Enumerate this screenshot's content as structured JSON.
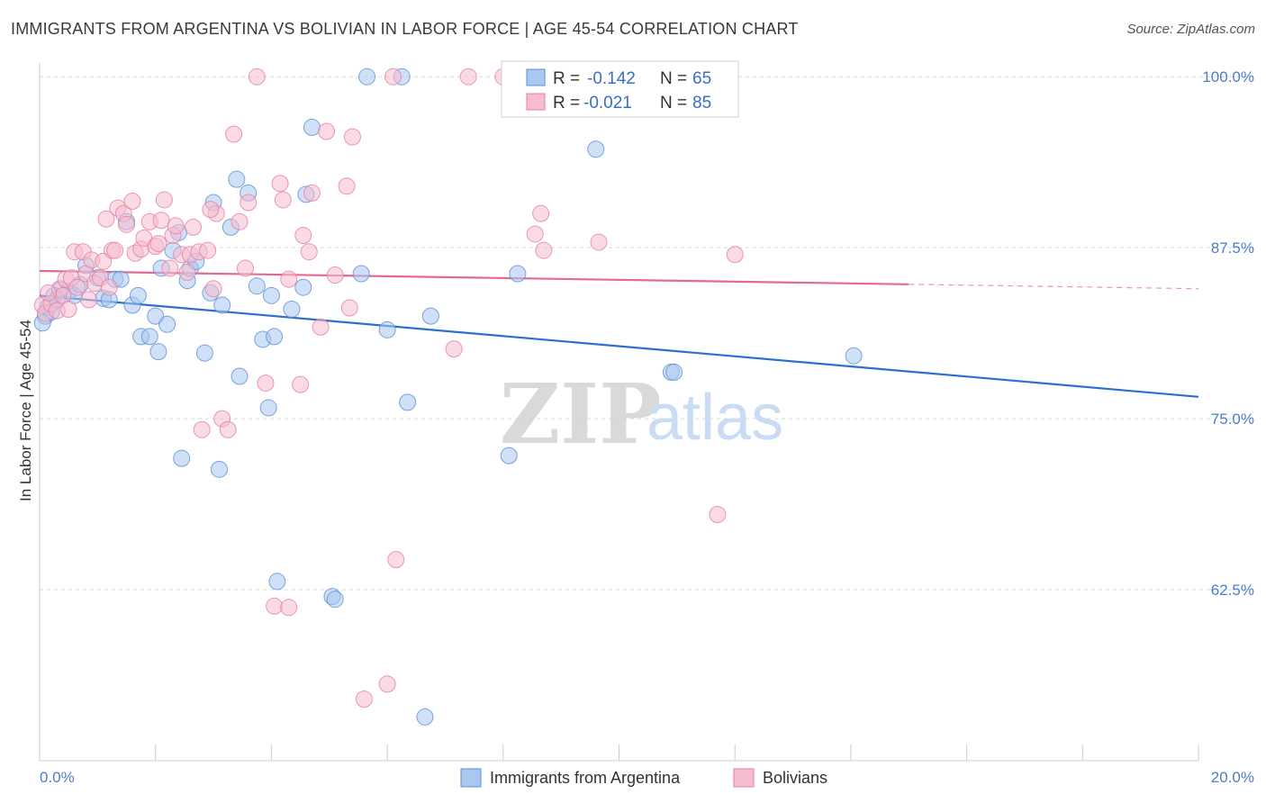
{
  "header": {
    "title": "IMMIGRANTS FROM ARGENTINA VS BOLIVIAN IN LABOR FORCE | AGE 45-54 CORRELATION CHART",
    "source": "Source: ZipAtlas.com"
  },
  "colors": {
    "blue_fill": "#a9c8f0",
    "blue_stroke": "#5b8fd6",
    "blue_line": "#2d6fcc",
    "pink_fill": "#f6bcd0",
    "pink_stroke": "#e57fa2",
    "pink_line": "#e36a93",
    "tick_label": "#4a7cc9",
    "grid": "#d8d8d8"
  },
  "watermark": {
    "zip": "ZIP",
    "atlas": "atlas"
  },
  "chart_data": {
    "type": "scatter",
    "xlabel": "",
    "ylabel": "In Labor Force | Age 45-54",
    "xlim": [
      0,
      20
    ],
    "ylim": [
      50,
      101
    ],
    "x_tick_labels": [
      {
        "value": 0,
        "label": "0.0%"
      },
      {
        "value": 20,
        "label": "20.0%"
      }
    ],
    "y_tick_labels": [
      {
        "value": 100,
        "label": "100.0%"
      },
      {
        "value": 87.5,
        "label": "87.5%"
      },
      {
        "value": 75,
        "label": "75.0%"
      },
      {
        "value": 62.5,
        "label": "62.5%"
      }
    ],
    "legend_stats": [
      {
        "r_label": "R =",
        "r_value": "-0.142",
        "n_label": "N =",
        "n_value": "65"
      },
      {
        "r_label": "R =",
        "r_value": "-0.021",
        "n_label": "N =",
        "n_value": "85"
      }
    ],
    "series": [
      {
        "name": "Immigrants from Argentina",
        "trend": {
          "x": [
            0,
            20
          ],
          "y": [
            84.0,
            76.6
          ],
          "solid_to": 20
        },
        "points": [
          [
            0.1,
            82.5
          ],
          [
            0.15,
            83.2
          ],
          [
            0.2,
            82.8
          ],
          [
            0.25,
            84.0
          ],
          [
            0.35,
            84.4
          ],
          [
            0.5,
            84.3
          ],
          [
            0.6,
            84.0
          ],
          [
            0.8,
            86.2
          ],
          [
            1.0,
            85.3
          ],
          [
            1.1,
            83.8
          ],
          [
            1.2,
            83.7
          ],
          [
            1.3,
            85.2
          ],
          [
            1.4,
            85.2
          ],
          [
            1.5,
            89.4
          ],
          [
            1.6,
            83.3
          ],
          [
            1.7,
            84.0
          ],
          [
            1.75,
            81.0
          ],
          [
            1.9,
            81.0
          ],
          [
            2.0,
            82.5
          ],
          [
            2.05,
            79.9
          ],
          [
            2.1,
            86.0
          ],
          [
            2.2,
            81.9
          ],
          [
            2.3,
            87.3
          ],
          [
            2.4,
            88.6
          ],
          [
            2.45,
            72.1
          ],
          [
            2.55,
            85.1
          ],
          [
            2.6,
            86.0
          ],
          [
            2.7,
            86.5
          ],
          [
            2.85,
            79.8
          ],
          [
            2.95,
            84.2
          ],
          [
            3.0,
            90.8
          ],
          [
            3.1,
            71.3
          ],
          [
            3.15,
            83.3
          ],
          [
            3.3,
            89.0
          ],
          [
            3.4,
            92.5
          ],
          [
            3.45,
            78.1
          ],
          [
            3.6,
            91.5
          ],
          [
            3.75,
            84.7
          ],
          [
            3.85,
            80.8
          ],
          [
            3.95,
            75.8
          ],
          [
            4.0,
            84.0
          ],
          [
            4.05,
            81.0
          ],
          [
            4.1,
            63.1
          ],
          [
            4.35,
            83.0
          ],
          [
            4.55,
            84.6
          ],
          [
            4.6,
            91.4
          ],
          [
            4.7,
            96.3
          ],
          [
            5.05,
            62.0
          ],
          [
            5.1,
            61.8
          ],
          [
            5.55,
            85.6
          ],
          [
            5.65,
            100.0
          ],
          [
            6.0,
            81.5
          ],
          [
            6.25,
            100.0
          ],
          [
            6.35,
            76.2
          ],
          [
            6.65,
            53.2
          ],
          [
            6.75,
            82.5
          ],
          [
            8.1,
            72.3
          ],
          [
            8.25,
            85.6
          ],
          [
            9.6,
            94.7
          ],
          [
            10.9,
            78.4
          ],
          [
            10.95,
            78.4
          ],
          [
            14.05,
            79.6
          ],
          [
            0.05,
            82.0
          ],
          [
            0.3,
            83.7
          ],
          [
            0.7,
            84.8
          ]
        ]
      },
      {
        "name": "Bolivians",
        "trend": {
          "x": [
            0,
            20
          ],
          "y": [
            85.8,
            84.5
          ],
          "solid_to": 15
        },
        "points": [
          [
            0.05,
            83.3
          ],
          [
            0.1,
            82.7
          ],
          [
            0.2,
            83.4
          ],
          [
            0.3,
            82.9
          ],
          [
            0.35,
            84.5
          ],
          [
            0.4,
            84.0
          ],
          [
            0.45,
            85.2
          ],
          [
            0.55,
            85.3
          ],
          [
            0.6,
            87.2
          ],
          [
            0.65,
            84.6
          ],
          [
            0.75,
            87.2
          ],
          [
            0.8,
            85.6
          ],
          [
            0.85,
            83.7
          ],
          [
            0.9,
            86.6
          ],
          [
            0.95,
            84.9
          ],
          [
            1.05,
            85.3
          ],
          [
            1.1,
            86.5
          ],
          [
            1.2,
            84.6
          ],
          [
            1.25,
            87.3
          ],
          [
            1.3,
            87.3
          ],
          [
            1.35,
            90.4
          ],
          [
            1.45,
            90.0
          ],
          [
            1.5,
            89.2
          ],
          [
            1.6,
            90.9
          ],
          [
            1.65,
            87.1
          ],
          [
            1.75,
            87.4
          ],
          [
            1.8,
            88.2
          ],
          [
            1.9,
            89.4
          ],
          [
            2.0,
            87.6
          ],
          [
            2.05,
            87.8
          ],
          [
            2.1,
            89.5
          ],
          [
            2.15,
            91.0
          ],
          [
            2.25,
            86.0
          ],
          [
            2.3,
            88.4
          ],
          [
            2.35,
            89.1
          ],
          [
            2.45,
            87.0
          ],
          [
            2.55,
            85.7
          ],
          [
            2.6,
            87.0
          ],
          [
            2.65,
            89.0
          ],
          [
            2.75,
            87.2
          ],
          [
            2.8,
            74.2
          ],
          [
            2.9,
            87.3
          ],
          [
            3.0,
            84.5
          ],
          [
            3.05,
            90.0
          ],
          [
            3.15,
            75.0
          ],
          [
            3.25,
            74.2
          ],
          [
            3.35,
            95.8
          ],
          [
            3.45,
            89.4
          ],
          [
            3.55,
            86.0
          ],
          [
            3.6,
            90.8
          ],
          [
            3.75,
            100.0
          ],
          [
            3.9,
            77.6
          ],
          [
            4.05,
            61.3
          ],
          [
            4.15,
            92.2
          ],
          [
            4.2,
            91.0
          ],
          [
            4.3,
            85.2
          ],
          [
            4.3,
            61.2
          ],
          [
            4.5,
            77.5
          ],
          [
            4.55,
            88.4
          ],
          [
            4.65,
            87.2
          ],
          [
            4.7,
            91.5
          ],
          [
            4.85,
            81.7
          ],
          [
            4.95,
            96.0
          ],
          [
            5.1,
            85.5
          ],
          [
            5.3,
            92.0
          ],
          [
            5.35,
            83.1
          ],
          [
            5.4,
            95.6
          ],
          [
            5.6,
            54.5
          ],
          [
            6.0,
            55.6
          ],
          [
            6.1,
            100.0
          ],
          [
            6.15,
            64.7
          ],
          [
            7.15,
            80.1
          ],
          [
            7.4,
            100.0
          ],
          [
            8.0,
            100.0
          ],
          [
            8.55,
            88.5
          ],
          [
            8.65,
            90.0
          ],
          [
            8.7,
            87.3
          ],
          [
            9.65,
            87.9
          ],
          [
            11.25,
            100.0
          ],
          [
            11.7,
            68.0
          ],
          [
            12.0,
            87.0
          ],
          [
            0.15,
            84.2
          ],
          [
            0.5,
            83.0
          ],
          [
            1.15,
            89.6
          ],
          [
            2.95,
            90.3
          ]
        ]
      }
    ]
  }
}
